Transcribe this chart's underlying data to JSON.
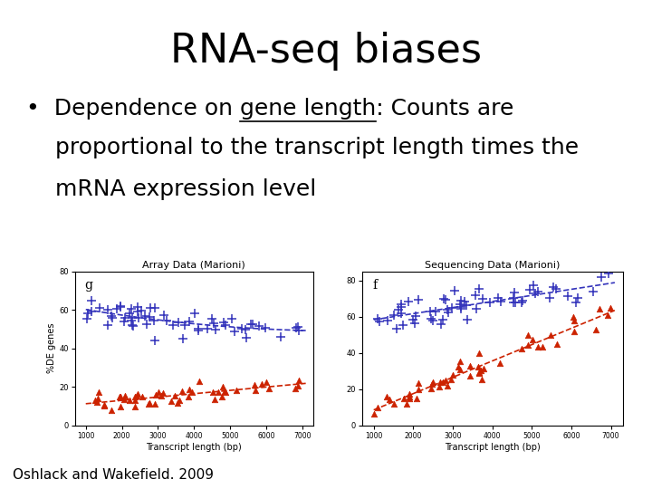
{
  "title": "RNA-seq biases",
  "title_fontsize": 32,
  "bullet_line1": "•  Dependence on gene length: Counts are",
  "bullet_line2": "    proportional to the transcript length times the",
  "bullet_line3": "    mRNA expression level",
  "bullet_prefix": "•  Dependence on ",
  "bullet_underline_word": "gene length",
  "bullet_fontsize": 18,
  "footnote": "Oshlack and Wakefield. 2009",
  "footnote_fontsize": 11,
  "plot_left_title": "Array Data (Marioni)",
  "plot_right_title": "Sequencing Data (Marioni)",
  "plot_left_label": "g",
  "plot_right_label": "f",
  "xlabel": "Transcript length (bp)",
  "ylabel": "%DE genes",
  "background_color": "#ffffff",
  "blue_color": "#3333bb",
  "red_color": "#cc2200"
}
